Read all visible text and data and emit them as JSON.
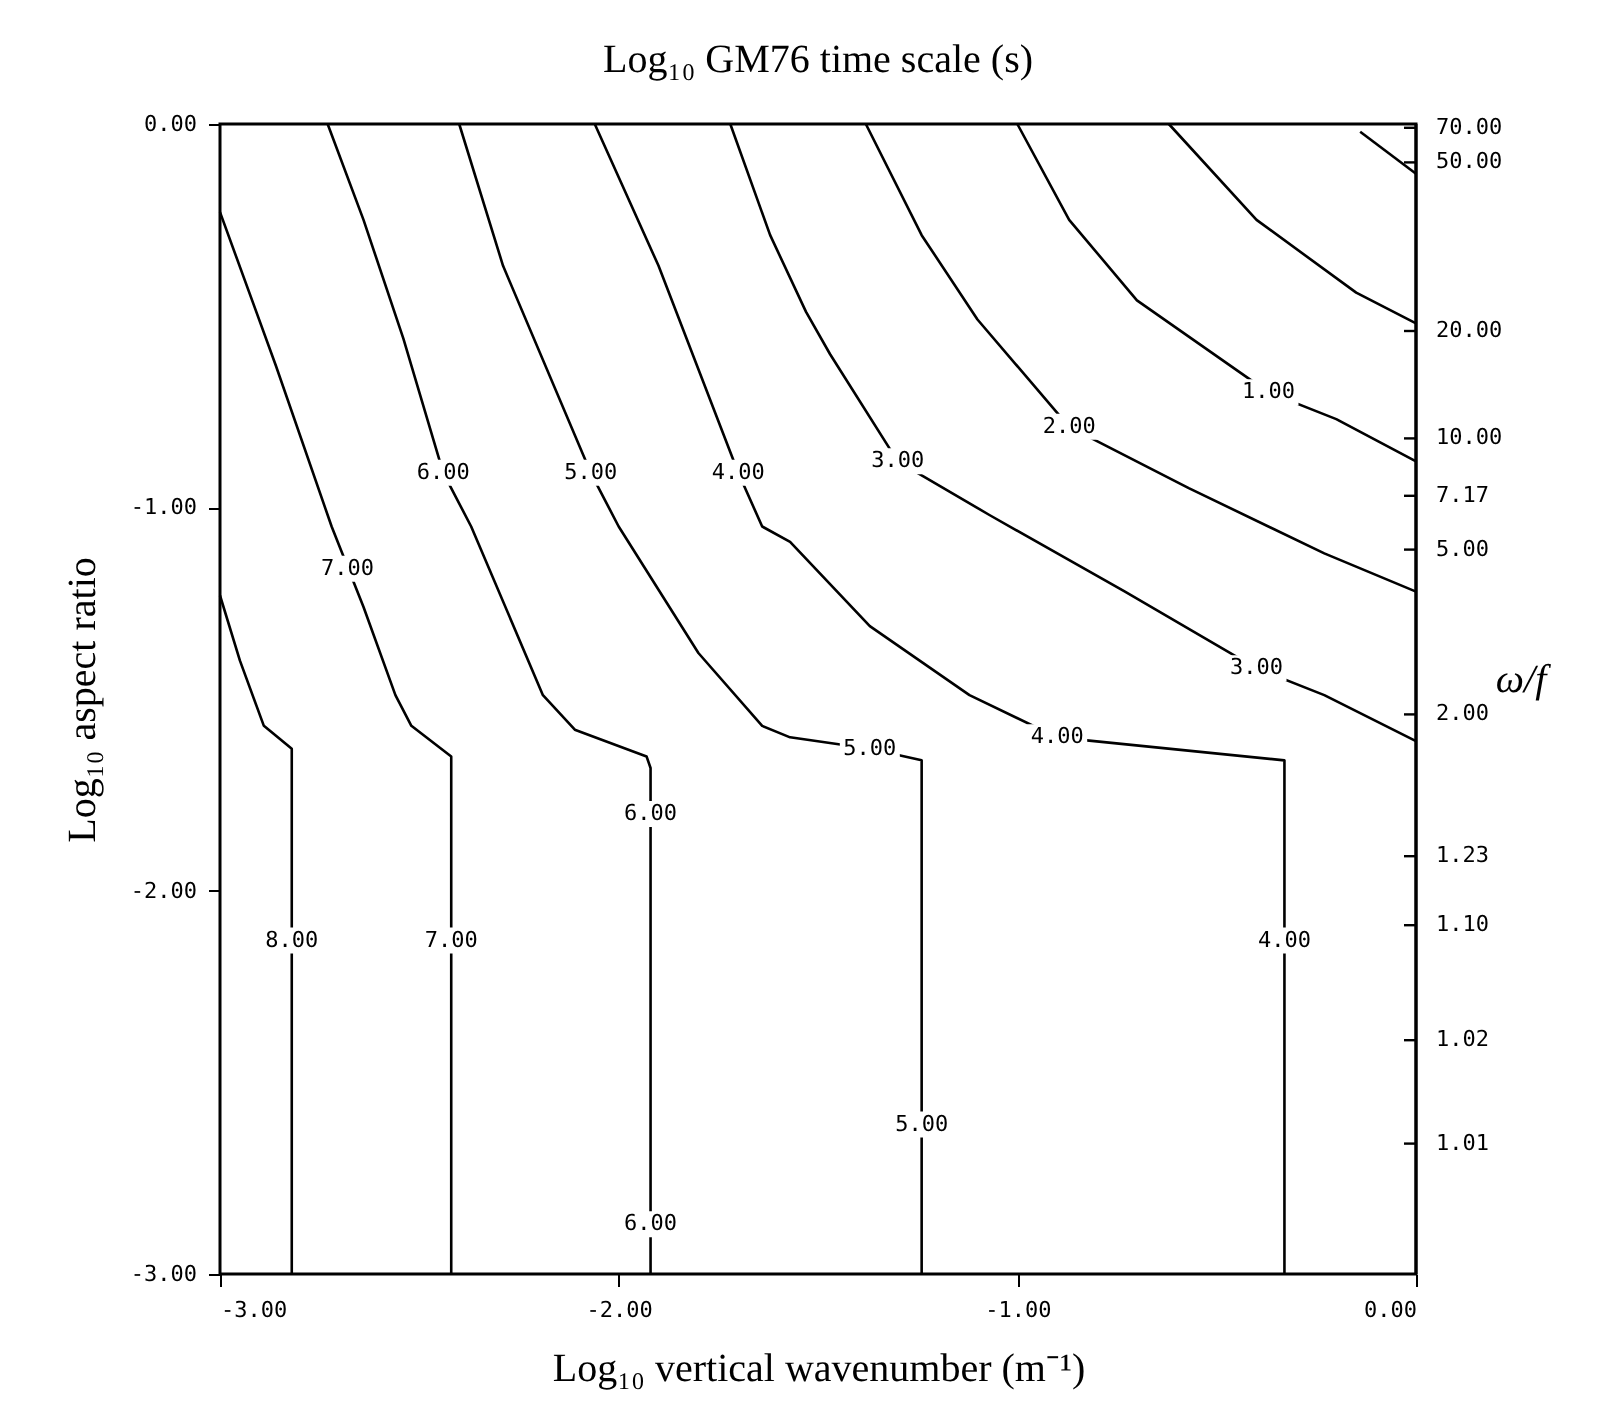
{
  "chart_data": {
    "type": "line",
    "title": "Log₁₀ GM76 time scale  (s)",
    "xlabel": "Log₁₀ vertical wavenumber (m⁻¹)",
    "ylabel": "Log₁₀ aspect ratio",
    "y2label": "ω/f",
    "xlim": [
      -3,
      0
    ],
    "ylim": [
      -3,
      0
    ],
    "xticks": [
      {
        "value": -3,
        "label": "-3.00"
      },
      {
        "value": -2,
        "label": "-2.00"
      },
      {
        "value": -1,
        "label": "-1.00"
      },
      {
        "value": 0,
        "label": "0.00"
      }
    ],
    "yticks": [
      {
        "value": -3,
        "label": "-3.00"
      },
      {
        "value": -2,
        "label": "-2.00"
      },
      {
        "value": -1,
        "label": "-1.00"
      },
      {
        "value": 0,
        "label": "0.00"
      }
    ],
    "grid": false,
    "marker": "none",
    "line_style": "solid",
    "series": [
      {
        "color": "#000000",
        "x": [
          -3,
          -2.95,
          -2.89,
          -2.82,
          -2.82
        ],
        "values": [
          -1.23,
          -1.4,
          -1.57,
          -1.63,
          -3
        ]
      },
      {
        "color": "#000000",
        "x": [
          -3,
          -2.86,
          -2.72,
          -2.64,
          -2.56,
          -2.52,
          -2.42,
          -2.42
        ],
        "values": [
          -0.23,
          -0.63,
          -1.05,
          -1.26,
          -1.49,
          -1.57,
          -1.65,
          -3
        ]
      },
      {
        "color": "#000000",
        "x": [
          -2.73,
          -2.64,
          -2.54,
          -2.44,
          -2.37,
          -2.19,
          -2.11,
          -1.93,
          -1.92,
          -1.92
        ],
        "values": [
          0,
          -0.25,
          -0.56,
          -0.91,
          -1.05,
          -1.49,
          -1.58,
          -1.65,
          -1.68,
          -3
        ]
      },
      {
        "color": "#000000",
        "x": [
          -2.4,
          -2.29,
          -2.07,
          -2.0,
          -1.8,
          -1.64,
          -1.57,
          -1.37,
          -1.24,
          -1.24
        ],
        "values": [
          0,
          -0.37,
          -0.91,
          -1.05,
          -1.38,
          -1.57,
          -1.6,
          -1.63,
          -1.66,
          -3
        ]
      },
      {
        "color": "#000000",
        "x": [
          -2.06,
          -1.9,
          -1.7,
          -1.64,
          -1.57,
          -1.37,
          -1.12,
          -0.9,
          -0.33,
          -0.33
        ],
        "values": [
          0,
          -0.37,
          -0.91,
          -1.05,
          -1.09,
          -1.31,
          -1.49,
          -1.6,
          -1.66,
          -3
        ]
      },
      {
        "color": "#000000",
        "x": [
          -1.72,
          -1.62,
          -1.53,
          -1.47,
          -1.3,
          -1.07,
          -0.73,
          -0.4,
          -0.23,
          0
        ],
        "values": [
          0,
          -0.29,
          -0.49,
          -0.6,
          -0.88,
          -1.02,
          -1.22,
          -1.42,
          -1.49,
          -1.61
        ]
      },
      {
        "color": "#000000",
        "x": [
          -1.38,
          -1.24,
          -1.1,
          -0.87,
          -0.57,
          -0.23,
          0
        ],
        "values": [
          0,
          -0.29,
          -0.51,
          -0.79,
          -0.95,
          -1.12,
          -1.22
        ]
      },
      {
        "color": "#000000",
        "x": [
          -1.0,
          -0.87,
          -0.7,
          -0.37,
          -0.2,
          0
        ],
        "values": [
          0,
          -0.25,
          -0.46,
          -0.7,
          -0.77,
          -0.88
        ]
      },
      {
        "color": "#000000",
        "x": [
          -0.62,
          -0.4,
          -0.15,
          0
        ],
        "values": [
          0,
          -0.25,
          -0.44,
          -0.52
        ]
      },
      {
        "color": "#000000",
        "x": [
          -0.14,
          0
        ],
        "values": [
          -0.02,
          -0.13
        ]
      }
    ],
    "annotations": [
      {
        "text": "8.00",
        "x": -2.82,
        "y": -2.13
      },
      {
        "text": "7.00",
        "x": -2.68,
        "y": -1.16
      },
      {
        "text": "7.00",
        "x": -2.42,
        "y": -2.13
      },
      {
        "text": "6.00",
        "x": -2.44,
        "y": -0.91
      },
      {
        "text": "6.00",
        "x": -1.92,
        "y": -1.8
      },
      {
        "text": "6.00",
        "x": -1.92,
        "y": -2.87
      },
      {
        "text": "5.00",
        "x": -2.07,
        "y": -0.91
      },
      {
        "text": "5.00",
        "x": -1.37,
        "y": -1.63
      },
      {
        "text": "5.00",
        "x": -1.24,
        "y": -2.61
      },
      {
        "text": "4.00",
        "x": -1.7,
        "y": -0.91
      },
      {
        "text": "4.00",
        "x": -0.9,
        "y": -1.6
      },
      {
        "text": "4.00",
        "x": -0.33,
        "y": -2.13
      },
      {
        "text": "3.00",
        "x": -1.3,
        "y": -0.88
      },
      {
        "text": "3.00",
        "x": -0.4,
        "y": -1.42
      },
      {
        "text": "2.00",
        "x": -0.87,
        "y": -0.79
      },
      {
        "text": "1.00",
        "x": -0.37,
        "y": -0.7
      },
      "70.00",
      "50.00",
      "20.00",
      "10.00",
      "7.17",
      "5.00",
      "2.00",
      "1.23",
      "1.10",
      "1.02",
      "1.01"
    ]
  }
}
